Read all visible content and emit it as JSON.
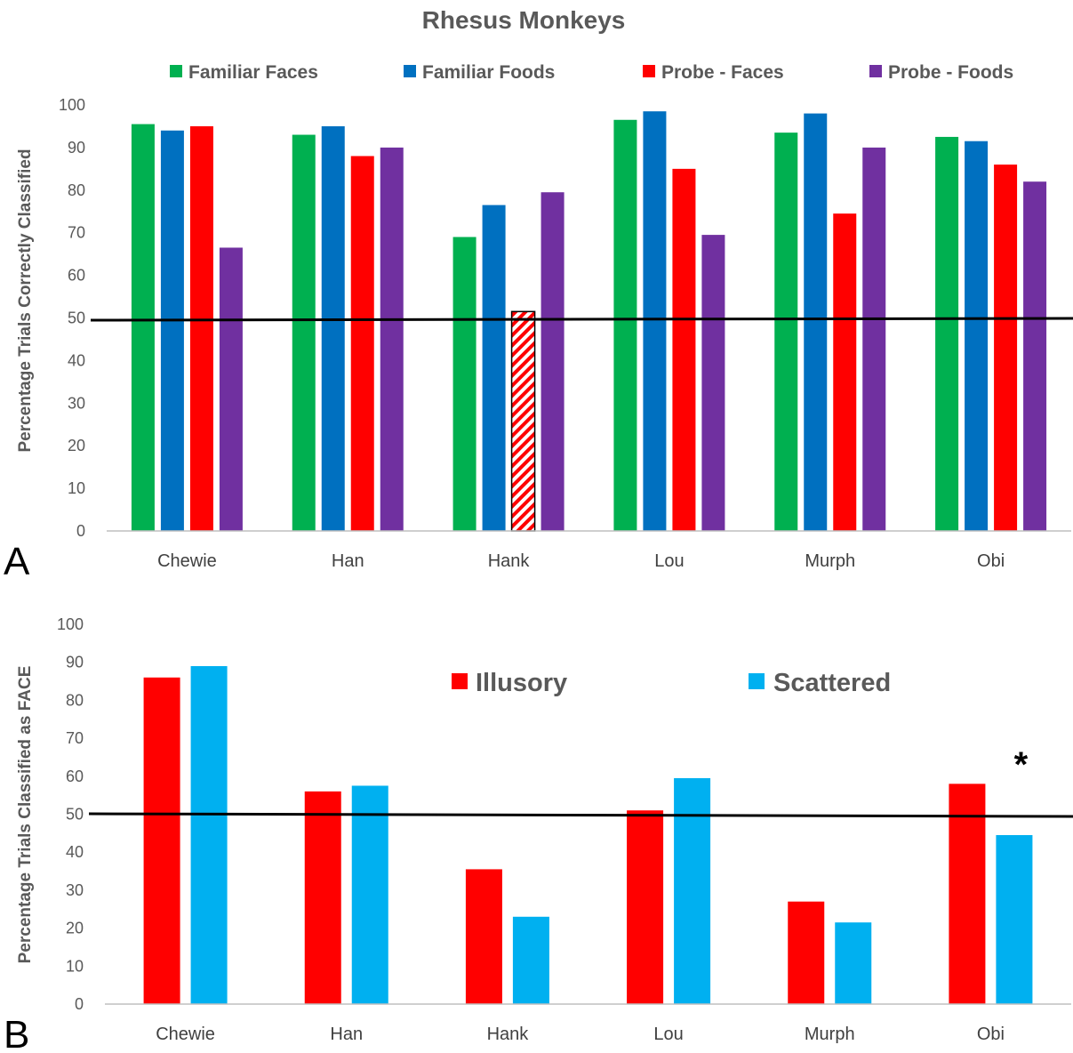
{
  "figure_title": "Rhesus Monkeys",
  "chart_data": [
    {
      "panel_label": "A",
      "type": "bar",
      "ylabel": "Percentage Trials Correctly Classified",
      "xlabel": "",
      "ylim": [
        0,
        100
      ],
      "ytick_step": 10,
      "categories": [
        "Chewie",
        "Han",
        "Hank",
        "Lou",
        "Murph",
        "Obi"
      ],
      "series": [
        {
          "name": "Familiar Faces",
          "color": "#00B050",
          "values": [
            95.5,
            93,
            69,
            96.5,
            93.5,
            92.5
          ]
        },
        {
          "name": "Familiar Foods",
          "color": "#0070C0",
          "values": [
            94,
            95,
            76.5,
            98.5,
            98,
            91.5
          ]
        },
        {
          "name": "Probe - Faces",
          "color": "#FF0000",
          "values": [
            95,
            88,
            51.5,
            85,
            74.5,
            86
          ],
          "hatched_categories": [
            "Hank"
          ]
        },
        {
          "name": "Probe - Foods",
          "color": "#7030A0",
          "values": [
            66.5,
            90,
            79.5,
            69.5,
            90,
            82
          ]
        }
      ],
      "reference_line": 50,
      "legend_position": "top",
      "grid": false
    },
    {
      "panel_label": "B",
      "type": "bar",
      "ylabel": "Percentage Trials Classified as FACE",
      "xlabel": "",
      "ylim": [
        0,
        100
      ],
      "ytick_step": 10,
      "categories": [
        "Chewie",
        "Han",
        "Hank",
        "Lou",
        "Murph",
        "Obi"
      ],
      "series": [
        {
          "name": "Illusory",
          "color": "#FF0000",
          "values": [
            86,
            56,
            35.5,
            51,
            27,
            58
          ]
        },
        {
          "name": "Scattered",
          "color": "#00B0F0",
          "values": [
            89,
            57.5,
            23,
            59.5,
            21.5,
            44.5
          ]
        }
      ],
      "reference_line": 50,
      "legend_position": "top-center",
      "grid": false,
      "annotations": [
        {
          "text": "*",
          "category": "Obi"
        }
      ]
    }
  ]
}
